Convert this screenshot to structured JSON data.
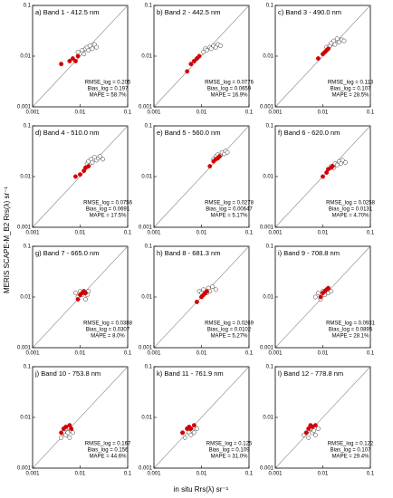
{
  "figure": {
    "ylabel": "MERIS SCAPE-M_B2 Rrs(λ) sr⁻¹",
    "xlabel": "in situ Rrs(λ) sr⁻¹"
  },
  "chart_data": [
    {
      "type": "scatter",
      "title": "a) Band 1 - 412.5 nm",
      "annotations": [
        "RMSE_log = 0.205",
        "Bias_log = 0.197",
        "MAPE = 58.7%"
      ],
      "log": true,
      "xlim": [
        0.001,
        0.1
      ],
      "ylim": [
        0.001,
        0.1
      ],
      "xticks": [
        0.001,
        0.01,
        0.1
      ],
      "yticks": [
        0.001,
        0.01,
        0.1
      ],
      "series": [
        {
          "color": "#ffffff",
          "x": [
            0.009,
            0.011,
            0.012,
            0.013,
            0.014,
            0.015,
            0.016,
            0.018,
            0.02,
            0.022
          ],
          "values": [
            0.012,
            0.013,
            0.011,
            0.014,
            0.015,
            0.013,
            0.016,
            0.014,
            0.017,
            0.015
          ]
        },
        {
          "color": "#d40000",
          "x": [
            0.004,
            0.006,
            0.007,
            0.008,
            0.009
          ],
          "values": [
            0.007,
            0.008,
            0.009,
            0.008,
            0.01
          ]
        }
      ]
    },
    {
      "type": "scatter",
      "title": "b) Band 2 - 442.5 nm",
      "annotations": [
        "RMSE_log = 0.0776",
        "Bias_log = 0.0659",
        "MAPE = 16.9%"
      ],
      "log": true,
      "xlim": [
        0.001,
        0.1
      ],
      "ylim": [
        0.001,
        0.1
      ],
      "xticks": [
        0.001,
        0.01,
        0.1
      ],
      "yticks": [
        0.001,
        0.01,
        0.1
      ],
      "series": [
        {
          "color": "#ffffff",
          "x": [
            0.011,
            0.012,
            0.013,
            0.015,
            0.016,
            0.018,
            0.02,
            0.022,
            0.025
          ],
          "values": [
            0.012,
            0.014,
            0.013,
            0.015,
            0.014,
            0.016,
            0.015,
            0.017,
            0.016
          ]
        },
        {
          "color": "#d40000",
          "x": [
            0.005,
            0.006,
            0.007,
            0.008,
            0.009
          ],
          "values": [
            0.005,
            0.007,
            0.008,
            0.009,
            0.01
          ]
        }
      ]
    },
    {
      "type": "scatter",
      "title": "c) Band 3 - 490.0 nm",
      "annotations": [
        "RMSE_log = 0.113",
        "Bias_log = 0.107",
        "MAPE = 28.5%"
      ],
      "log": true,
      "xlim": [
        0.001,
        0.1
      ],
      "ylim": [
        0.001,
        0.1
      ],
      "xticks": [
        0.001,
        0.01,
        0.1
      ],
      "yticks": [
        0.001,
        0.01,
        0.1
      ],
      "series": [
        {
          "color": "#ffffff",
          "x": [
            0.012,
            0.014,
            0.015,
            0.017,
            0.018,
            0.02,
            0.022,
            0.025,
            0.028
          ],
          "values": [
            0.015,
            0.016,
            0.018,
            0.02,
            0.017,
            0.022,
            0.019,
            0.021,
            0.02
          ]
        },
        {
          "color": "#d40000",
          "x": [
            0.008,
            0.01,
            0.011,
            0.012,
            0.013
          ],
          "values": [
            0.009,
            0.011,
            0.012,
            0.013,
            0.014
          ]
        }
      ]
    },
    {
      "type": "scatter",
      "title": "d) Band 4 - 510.0 nm",
      "annotations": [
        "RMSE_log = 0.0756",
        "Bias_log = 0.0691",
        "MAPE = 17.5%"
      ],
      "log": true,
      "xlim": [
        0.001,
        0.1
      ],
      "ylim": [
        0.001,
        0.1
      ],
      "xticks": [
        0.001,
        0.01,
        0.1
      ],
      "yticks": [
        0.001,
        0.01,
        0.1
      ],
      "series": [
        {
          "color": "#ffffff",
          "x": [
            0.014,
            0.015,
            0.017,
            0.018,
            0.02,
            0.022,
            0.024,
            0.026,
            0.03
          ],
          "values": [
            0.018,
            0.02,
            0.022,
            0.019,
            0.024,
            0.021,
            0.023,
            0.025,
            0.022
          ]
        },
        {
          "color": "#d40000",
          "x": [
            0.008,
            0.01,
            0.012,
            0.013,
            0.015
          ],
          "values": [
            0.01,
            0.011,
            0.013,
            0.015,
            0.016
          ]
        }
      ]
    },
    {
      "type": "scatter",
      "title": "e) Band 5 - 560.0 nm",
      "annotations": [
        "RMSE_log = 0.0278",
        "Bias_log = 0.00647",
        "MAPE = 5.17%"
      ],
      "log": true,
      "xlim": [
        0.001,
        0.1
      ],
      "ylim": [
        0.001,
        0.1
      ],
      "xticks": [
        0.001,
        0.01,
        0.1
      ],
      "yticks": [
        0.001,
        0.01,
        0.1
      ],
      "series": [
        {
          "color": "#ffffff",
          "x": [
            0.018,
            0.02,
            0.022,
            0.025,
            0.027,
            0.03,
            0.032,
            0.035
          ],
          "values": [
            0.022,
            0.025,
            0.027,
            0.026,
            0.03,
            0.028,
            0.032,
            0.03
          ]
        },
        {
          "color": "#d40000",
          "x": [
            0.015,
            0.018,
            0.02,
            0.022,
            0.024
          ],
          "values": [
            0.016,
            0.02,
            0.022,
            0.023,
            0.025
          ]
        }
      ]
    },
    {
      "type": "scatter",
      "title": "f) Band 6 - 620.0 nm",
      "annotations": [
        "RMSE_log = 0.0258",
        "Bias_log = 0.0131",
        "MAPE = 4.70%"
      ],
      "log": true,
      "xlim": [
        0.001,
        0.1
      ],
      "ylim": [
        0.001,
        0.1
      ],
      "xticks": [
        0.001,
        0.01,
        0.1
      ],
      "yticks": [
        0.001,
        0.01,
        0.1
      ],
      "series": [
        {
          "color": "#ffffff",
          "x": [
            0.015,
            0.017,
            0.018,
            0.02,
            0.022,
            0.024,
            0.026,
            0.03
          ],
          "values": [
            0.016,
            0.015,
            0.018,
            0.017,
            0.02,
            0.018,
            0.021,
            0.019
          ]
        },
        {
          "color": "#d40000",
          "x": [
            0.01,
            0.012,
            0.013,
            0.015,
            0.016
          ],
          "values": [
            0.01,
            0.012,
            0.014,
            0.015,
            0.016
          ]
        }
      ]
    },
    {
      "type": "scatter",
      "title": "g) Band 7 - 665.0 nm",
      "annotations": [
        "RMSE_log = 0.0388",
        "Bias_log = 0.0307",
        "MAPE = 8.0%"
      ],
      "log": true,
      "xlim": [
        0.001,
        0.1
      ],
      "ylim": [
        0.001,
        0.1
      ],
      "xticks": [
        0.001,
        0.01,
        0.1
      ],
      "yticks": [
        0.001,
        0.01,
        0.1
      ],
      "series": [
        {
          "color": "#ffffff",
          "x": [
            0.008,
            0.009,
            0.01,
            0.011,
            0.012,
            0.013,
            0.014,
            0.015
          ],
          "values": [
            0.012,
            0.01,
            0.013,
            0.011,
            0.012,
            0.009,
            0.011,
            0.013
          ]
        },
        {
          "color": "#d40000",
          "x": [
            0.009,
            0.01,
            0.011,
            0.012,
            0.013
          ],
          "values": [
            0.009,
            0.011,
            0.012,
            0.013,
            0.012
          ]
        }
      ]
    },
    {
      "type": "scatter",
      "title": "h) Band 8 - 681.3 nm",
      "annotations": [
        "RMSE_log = 0.0269",
        "Bias_log = 0.0102",
        "MAPE = 5.27%"
      ],
      "log": true,
      "xlim": [
        0.001,
        0.1
      ],
      "ylim": [
        0.001,
        0.1
      ],
      "xticks": [
        0.001,
        0.01,
        0.1
      ],
      "yticks": [
        0.001,
        0.01,
        0.1
      ],
      "series": [
        {
          "color": "#ffffff",
          "x": [
            0.009,
            0.01,
            0.011,
            0.013,
            0.014,
            0.015,
            0.017,
            0.02
          ],
          "values": [
            0.013,
            0.012,
            0.014,
            0.012,
            0.015,
            0.013,
            0.016,
            0.014
          ]
        },
        {
          "color": "#d40000",
          "x": [
            0.008,
            0.01,
            0.011,
            0.012,
            0.013
          ],
          "values": [
            0.008,
            0.01,
            0.011,
            0.012,
            0.013
          ]
        }
      ]
    },
    {
      "type": "scatter",
      "title": "i) Band 9 - 708.8 nm",
      "annotations": [
        "RMSE_log = 0.0931",
        "Bias_log = 0.0895",
        "MAPE = 28.1%"
      ],
      "log": true,
      "xlim": [
        0.001,
        0.1
      ],
      "ylim": [
        0.001,
        0.1
      ],
      "xticks": [
        0.001,
        0.01,
        0.1
      ],
      "yticks": [
        0.001,
        0.01,
        0.1
      ],
      "series": [
        {
          "color": "#ffffff",
          "x": [
            0.007,
            0.008,
            0.009,
            0.01,
            0.011,
            0.012,
            0.013,
            0.015
          ],
          "values": [
            0.01,
            0.012,
            0.009,
            0.013,
            0.011,
            0.014,
            0.012,
            0.013
          ]
        },
        {
          "color": "#d40000",
          "x": [
            0.009,
            0.01,
            0.011,
            0.012,
            0.013
          ],
          "values": [
            0.01,
            0.012,
            0.013,
            0.014,
            0.015
          ]
        }
      ]
    },
    {
      "type": "scatter",
      "title": "j) Band 10 - 753.8 nm",
      "annotations": [
        "RMSE_log = 0.167",
        "Bias_log = 0.156",
        "MAPE = 44.6%"
      ],
      "log": true,
      "xlim": [
        0.001,
        0.1
      ],
      "ylim": [
        0.001,
        0.1
      ],
      "xticks": [
        0.001,
        0.01,
        0.1
      ],
      "yticks": [
        0.001,
        0.01,
        0.1
      ],
      "series": [
        {
          "color": "#ffffff",
          "x": [
            0.004,
            0.0045,
            0.005,
            0.005,
            0.0055,
            0.006,
            0.0065,
            0.007
          ],
          "values": [
            0.004,
            0.005,
            0.0045,
            0.006,
            0.005,
            0.004,
            0.0055,
            0.005
          ]
        },
        {
          "color": "#d40000",
          "x": [
            0.004,
            0.0045,
            0.005,
            0.006,
            0.0065
          ],
          "values": [
            0.005,
            0.006,
            0.0065,
            0.007,
            0.006
          ]
        }
      ]
    },
    {
      "type": "scatter",
      "title": "k) Band 11 - 761.9 nm",
      "annotations": [
        "RMSE_log = 0.125",
        "Bias_log = 0.109",
        "MAPE = 31.0%"
      ],
      "log": true,
      "xlim": [
        0.001,
        0.1
      ],
      "ylim": [
        0.001,
        0.1
      ],
      "xticks": [
        0.001,
        0.01,
        0.1
      ],
      "yticks": [
        0.001,
        0.01,
        0.1
      ],
      "series": [
        {
          "color": "#ffffff",
          "x": [
            0.004,
            0.0045,
            0.005,
            0.0055,
            0.006,
            0.0065,
            0.007,
            0.008
          ],
          "values": [
            0.005,
            0.004,
            0.006,
            0.005,
            0.0045,
            0.0055,
            0.005,
            0.006
          ]
        },
        {
          "color": "#d40000",
          "x": [
            0.004,
            0.005,
            0.0055,
            0.006,
            0.007
          ],
          "values": [
            0.005,
            0.006,
            0.0065,
            0.006,
            0.007
          ]
        }
      ]
    },
    {
      "type": "scatter",
      "title": "l) Band 12 - 778.8 nm",
      "annotations": [
        "RMSE_log = 0.122",
        "Bias_log = 0.107",
        "MAPE = 29.4%"
      ],
      "log": true,
      "xlim": [
        0.001,
        0.1
      ],
      "ylim": [
        0.001,
        0.1
      ],
      "xticks": [
        0.001,
        0.01,
        0.1
      ],
      "yticks": [
        0.001,
        0.01,
        0.1
      ],
      "series": [
        {
          "color": "#ffffff",
          "x": [
            0.004,
            0.0045,
            0.005,
            0.0055,
            0.006,
            0.0065,
            0.007,
            0.008
          ],
          "values": [
            0.0045,
            0.005,
            0.004,
            0.006,
            0.005,
            0.0055,
            0.0045,
            0.006
          ]
        },
        {
          "color": "#d40000",
          "x": [
            0.0045,
            0.005,
            0.0055,
            0.006,
            0.007
          ],
          "values": [
            0.005,
            0.006,
            0.007,
            0.0065,
            0.007
          ]
        }
      ]
    }
  ]
}
